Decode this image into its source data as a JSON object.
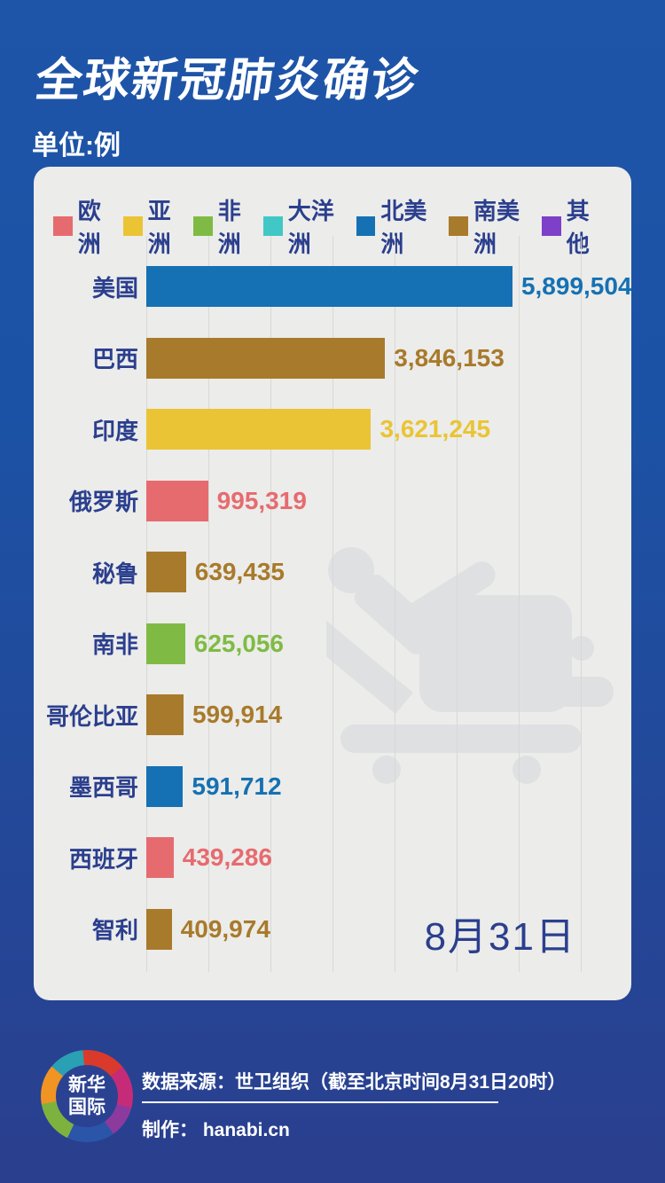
{
  "header": {
    "title": "全球新冠肺炎确诊",
    "subtitle": "单位:例"
  },
  "legend": {
    "items": [
      {
        "label": "欧洲",
        "color": "#E66B6F"
      },
      {
        "label": "亚洲",
        "color": "#EAC434"
      },
      {
        "label": "非洲",
        "color": "#7FBB44"
      },
      {
        "label": "大洋洲",
        "color": "#42C7C7"
      },
      {
        "label": "北美洲",
        "color": "#1571B3"
      },
      {
        "label": "南美洲",
        "color": "#A87A2B"
      },
      {
        "label": "其他",
        "color": "#7E3FC9"
      }
    ]
  },
  "chart_data": {
    "type": "bar",
    "orientation": "horizontal",
    "title": "全球新冠肺炎确诊",
    "unit_label": "单位:例",
    "date_annotation": "8月31日",
    "legend_position": "top",
    "grid": "on",
    "xlim": [
      0,
      7000000
    ],
    "gridline_interval": 1000000,
    "categories": [
      "美国",
      "巴西",
      "印度",
      "俄罗斯",
      "秘鲁",
      "南非",
      "哥伦比亚",
      "墨西哥",
      "西班牙",
      "智利"
    ],
    "values": [
      5899504,
      3846153,
      3621245,
      995319,
      639435,
      625056,
      599914,
      591712,
      439286,
      409974
    ],
    "bars": [
      {
        "country": "美国",
        "continent": "北美洲",
        "value": 5899504,
        "value_label": "5,899,504",
        "color": "#1571B3"
      },
      {
        "country": "巴西",
        "continent": "南美洲",
        "value": 3846153,
        "value_label": "3,846,153",
        "color": "#A87A2B"
      },
      {
        "country": "印度",
        "continent": "亚洲",
        "value": 3621245,
        "value_label": "3,621,245",
        "color": "#EAC434"
      },
      {
        "country": "俄罗斯",
        "continent": "欧洲",
        "value": 995319,
        "value_label": "995,319",
        "color": "#E66B6F"
      },
      {
        "country": "秘鲁",
        "continent": "南美洲",
        "value": 639435,
        "value_label": "639,435",
        "color": "#A87A2B"
      },
      {
        "country": "南非",
        "continent": "非洲",
        "value": 625056,
        "value_label": "625,056",
        "color": "#7FBB44"
      },
      {
        "country": "哥伦比亚",
        "continent": "南美洲",
        "value": 599914,
        "value_label": "599,914",
        "color": "#A87A2B"
      },
      {
        "country": "墨西哥",
        "continent": "北美洲",
        "value": 591712,
        "value_label": "591,712",
        "color": "#1571B3"
      },
      {
        "country": "西班牙",
        "continent": "欧洲",
        "value": 439286,
        "value_label": "439,286",
        "color": "#E66B6F"
      },
      {
        "country": "智利",
        "continent": "南美洲",
        "value": 409974,
        "value_label": "409,974",
        "color": "#A87A2B"
      }
    ]
  },
  "icons": {
    "watermark": "patient-on-stretcher-icon",
    "logo": "xinhua-international-ring-logo"
  },
  "footer": {
    "logo_line1": "新华",
    "logo_line2": "国际",
    "source": "数据来源：世卫组织（截至北京时间8月31日20时）",
    "credit": "制作： hanabi.cn"
  },
  "colors": {
    "background_top": "#1E55A8",
    "background_bottom": "#2A3F8E",
    "card": "#ECECEA",
    "text_navy": "#2B3F8E",
    "gridline": "#D8D8D5",
    "watermark_gray": "#DFE0E2"
  }
}
